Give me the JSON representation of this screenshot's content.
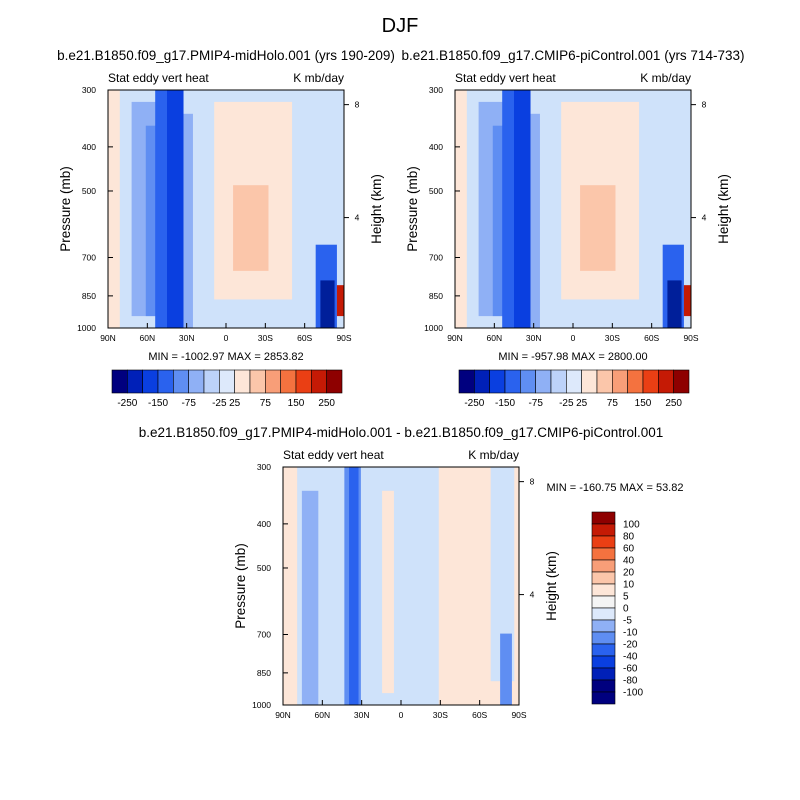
{
  "page_title": "DJF",
  "chart_data": [
    {
      "type": "heatmap",
      "title": "b.e21.B1850.f09_g17.PMIP4-midHolo.001 (yrs 190-209)",
      "left_label": "Stat eddy vert heat",
      "right_label": "K mb/day",
      "xlabel": "",
      "ylabel": "Pressure (mb)",
      "ylabel_right": "Height (km)",
      "x_ticks": [
        "90N",
        "60N",
        "30N",
        "0",
        "30S",
        "60S",
        "90S"
      ],
      "y_ticks": [
        "300",
        "400",
        "500",
        "700",
        "850",
        "1000"
      ],
      "y_right_ticks": [
        "8",
        "4"
      ],
      "stats": "MIN = -1002.97  MAX = 2853.82",
      "colorbar": {
        "orientation": "horizontal",
        "levels": [
          "-250",
          "-150",
          "-75",
          "-25",
          "25",
          "75",
          "150",
          "250"
        ]
      }
    },
    {
      "type": "heatmap",
      "title": "b.e21.B1850.f09_g17.CMIP6-piControl.001 (yrs 714-733)",
      "left_label": "Stat eddy vert heat",
      "right_label": "K mb/day",
      "xlabel": "",
      "ylabel": "Pressure (mb)",
      "ylabel_right": "Height (km)",
      "x_ticks": [
        "90N",
        "60N",
        "30N",
        "0",
        "30S",
        "60S",
        "90S"
      ],
      "y_ticks": [
        "300",
        "400",
        "500",
        "700",
        "850",
        "1000"
      ],
      "y_right_ticks": [
        "8",
        "4"
      ],
      "stats": "MIN = -957.98  MAX = 2800.00",
      "colorbar": {
        "orientation": "horizontal",
        "levels": [
          "-250",
          "-150",
          "-75",
          "-25",
          "25",
          "75",
          "150",
          "250"
        ]
      }
    },
    {
      "type": "heatmap",
      "title": "b.e21.B1850.f09_g17.PMIP4-midHolo.001 - b.e21.B1850.f09_g17.CMIP6-piControl.001",
      "left_label": "Stat eddy vert heat",
      "right_label": "K mb/day",
      "xlabel": "",
      "ylabel": "Pressure (mb)",
      "ylabel_right": "Height (km)",
      "x_ticks": [
        "90N",
        "60N",
        "30N",
        "0",
        "30S",
        "60S",
        "90S"
      ],
      "y_ticks": [
        "300",
        "400",
        "500",
        "700",
        "850",
        "1000"
      ],
      "y_right_ticks": [
        "8",
        "4"
      ],
      "stats": "MIN = -160.75  MAX =  53.82",
      "colorbar": {
        "orientation": "vertical",
        "levels": [
          "100",
          "80",
          "60",
          "40",
          "20",
          "10",
          "5",
          "0",
          "-5",
          "-10",
          "-20",
          "-40",
          "-60",
          "-80",
          "-100"
        ]
      }
    }
  ],
  "palette": [
    "#00007f",
    "#0020b8",
    "#0a3fe0",
    "#2a62ee",
    "#5f8ef2",
    "#8fb0f5",
    "#bcd2f9",
    "#dde9fb",
    "#fde6d8",
    "#fbc6aa",
    "#f89e78",
    "#f4723f",
    "#ea3f14",
    "#c51a05",
    "#8e0000"
  ],
  "field_colors": {
    "light_blue": "#cfe2fa",
    "pale_orange": "#fde6d8",
    "mid_orange": "#fbc6aa",
    "blue": "#8fb0f5",
    "mid_blue": "#5f8ef2",
    "dark_blue": "#2a62ee",
    "deep_blue": "#0a3fe0",
    "navy": "#001f9a",
    "red": "#c51a05"
  }
}
